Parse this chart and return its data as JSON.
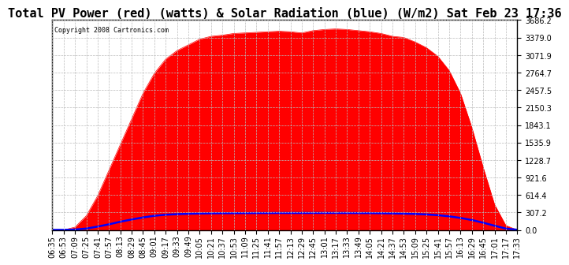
{
  "title": "Total PV Power (red) (watts) & Solar Radiation (blue) (W/m2) Sat Feb 23 17:36",
  "copyright_text": "Copyright 2008 Cartronics.com",
  "background_color": "#ffffff",
  "plot_bg_color": "#ffffff",
  "yticks": [
    0.0,
    307.2,
    614.4,
    921.6,
    1228.7,
    1535.9,
    1843.1,
    2150.3,
    2457.5,
    2764.7,
    3071.9,
    3379.0,
    3686.2
  ],
  "ymax": 3686.2,
  "xtick_labels": [
    "06:35",
    "06:53",
    "07:09",
    "07:25",
    "07:41",
    "07:57",
    "08:13",
    "08:29",
    "08:45",
    "09:01",
    "09:17",
    "09:33",
    "09:49",
    "10:05",
    "10:21",
    "10:37",
    "10:53",
    "11:09",
    "11:25",
    "11:41",
    "11:57",
    "12:13",
    "12:29",
    "12:45",
    "13:01",
    "13:17",
    "13:33",
    "13:49",
    "14:05",
    "14:21",
    "14:37",
    "14:53",
    "15:09",
    "15:25",
    "15:41",
    "15:57",
    "16:13",
    "16:29",
    "16:45",
    "17:01",
    "17:17",
    "17:33"
  ],
  "pv_power": [
    0,
    0,
    50,
    250,
    600,
    1050,
    1500,
    1950,
    2400,
    2750,
    3000,
    3150,
    3250,
    3350,
    3400,
    3420,
    3450,
    3460,
    3470,
    3480,
    3490,
    3480,
    3460,
    3500,
    3520,
    3530,
    3520,
    3500,
    3480,
    3450,
    3400,
    3380,
    3300,
    3200,
    3050,
    2800,
    2400,
    1800,
    1100,
    450,
    80,
    0
  ],
  "solar_rad": [
    2,
    3,
    8,
    25,
    60,
    100,
    145,
    185,
    220,
    250,
    268,
    278,
    285,
    290,
    293,
    295,
    296,
    297,
    298,
    298,
    299,
    299,
    299,
    300,
    300,
    300,
    299,
    298,
    297,
    295,
    292,
    288,
    282,
    273,
    260,
    240,
    212,
    175,
    128,
    75,
    25,
    5
  ],
  "pv_color": "#ff0000",
  "solar_color": "#0000ff",
  "grid_color": "#bbbbbb",
  "title_fontsize": 11,
  "tick_fontsize": 7
}
